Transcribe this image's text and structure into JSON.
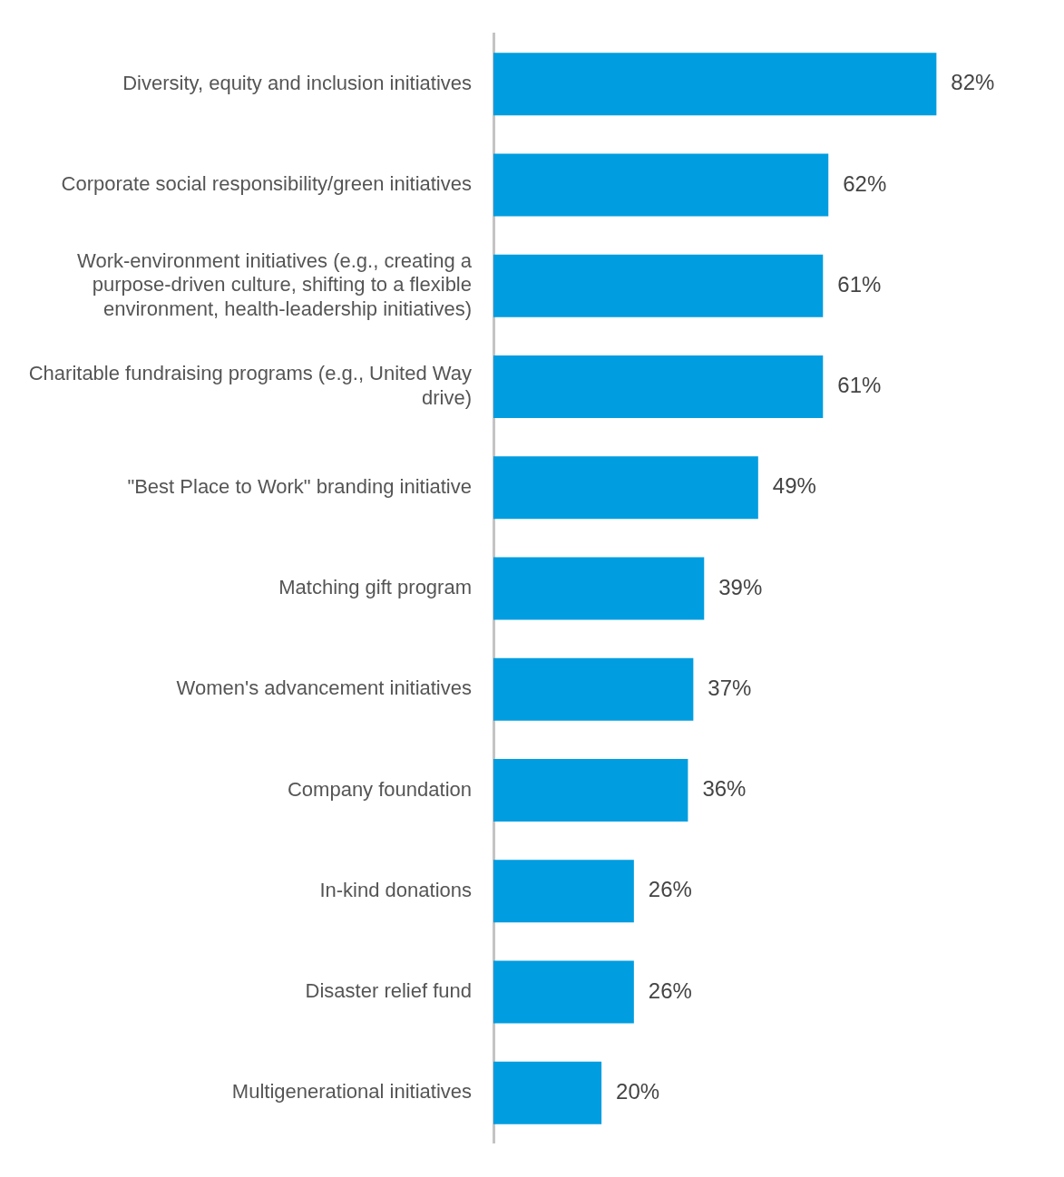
{
  "chart_data": {
    "type": "bar",
    "orientation": "horizontal",
    "legend": false,
    "value_labels": [
      "82%",
      "62%",
      "61%",
      "61%",
      "49%",
      "39%",
      "37%",
      "36%",
      "26%",
      "26%",
      "20%"
    ],
    "categories": [
      "Diversity, equity and inclusion initiatives",
      "Corporate social responsibility/green initiatives",
      "Work-environment initiatives (e.g., creating a purpose-driven culture, shifting to a flexible environment, health-leadership initiatives)",
      "Charitable fundraising programs (e.g., United Way drive)",
      "\"Best Place to Work\" branding initiative",
      "Matching gift program",
      "Women's advancement initiatives",
      "Company foundation",
      "In-kind donations",
      "Disaster relief fund",
      "Multigenerational initiatives"
    ],
    "values": [
      82,
      62,
      61,
      61,
      49,
      39,
      37,
      36,
      26,
      26,
      20
    ],
    "color": "#009de0"
  }
}
